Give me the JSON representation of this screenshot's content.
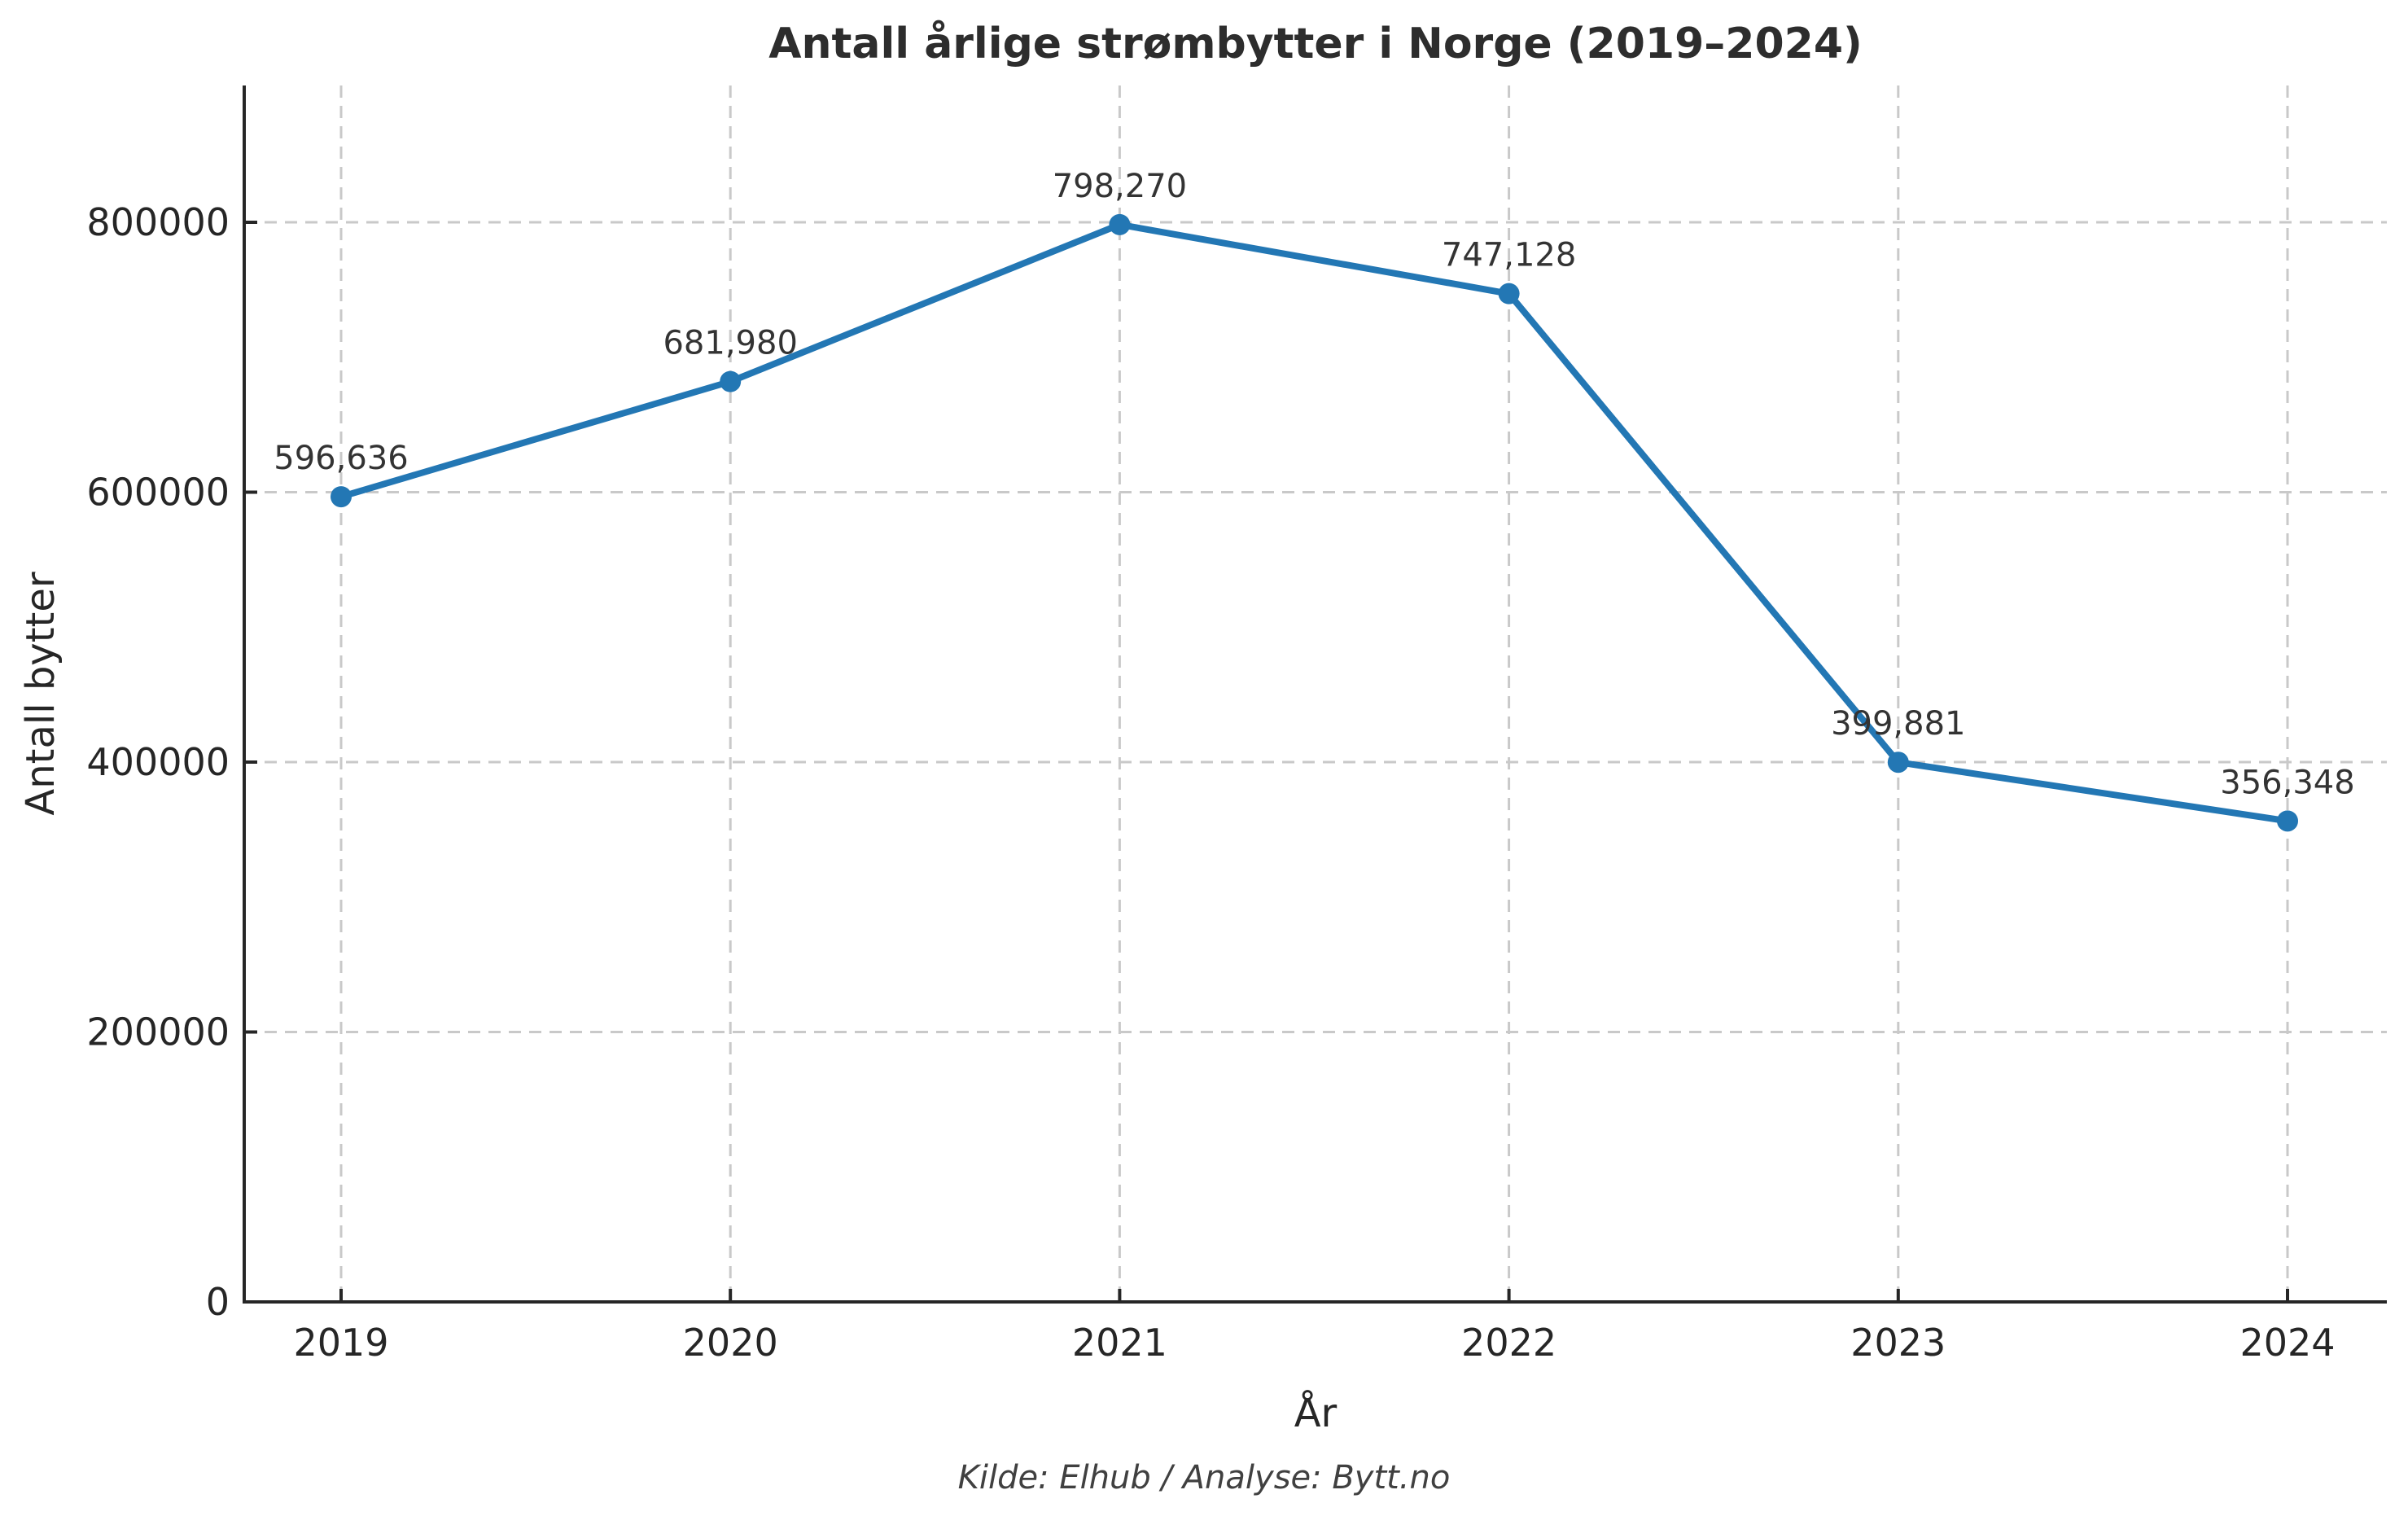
{
  "chart_data": {
    "type": "line",
    "title": "Antall årlige strømbytter i Norge (2019–2024)",
    "xlabel": "År",
    "ylabel": "Antall bytter",
    "source_note": "Kilde: Elhub / Analyse: Bytt.no",
    "categories": [
      "2019",
      "2020",
      "2021",
      "2022",
      "2023",
      "2024"
    ],
    "values": [
      596636,
      681980,
      798270,
      747128,
      399881,
      356348
    ],
    "point_labels": [
      "596,636",
      "681,980",
      "798,270",
      "747,128",
      "399,881",
      "356,348"
    ],
    "ylim": [
      0,
      900000
    ],
    "yticks": [
      0,
      200000,
      400000,
      600000,
      800000
    ],
    "ytick_labels": [
      "0",
      "200000",
      "400000",
      "600000",
      "800000"
    ],
    "grid": true,
    "grid_style": "dashed",
    "legend": "none",
    "marker": "circle"
  },
  "colors": {
    "line": "#2377b4",
    "grid": "#c9c9c9",
    "spine": "#262626",
    "tick_text": "#262626",
    "point_label_text": "#333333"
  }
}
